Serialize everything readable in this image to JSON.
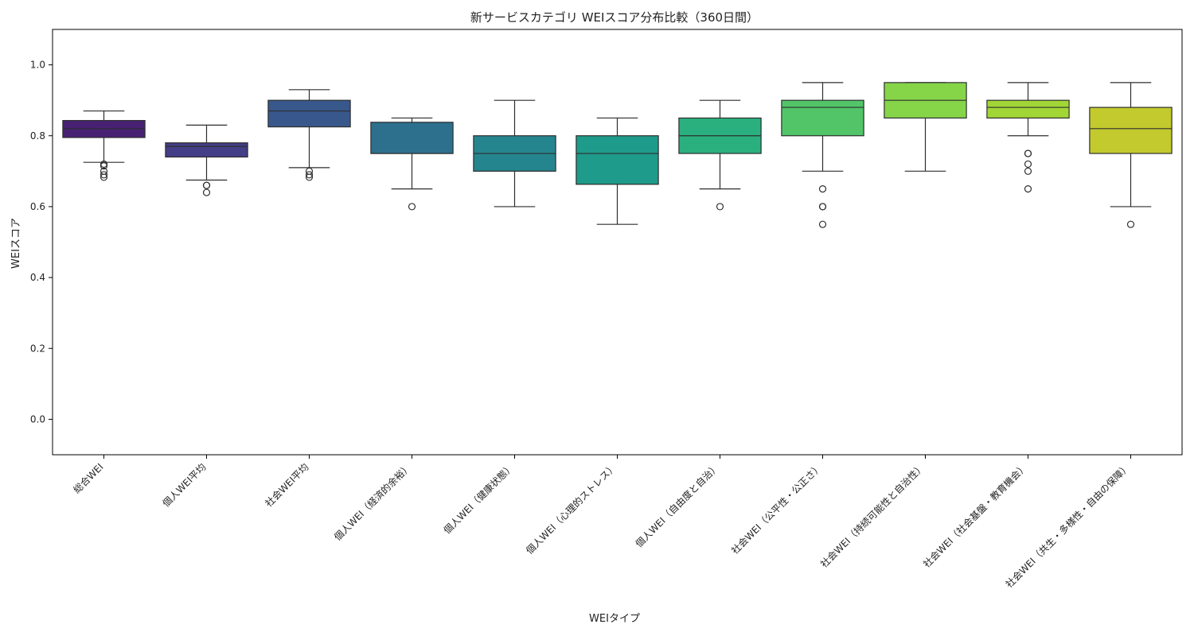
{
  "chart_data": {
    "type": "box",
    "title": "新サービスカテゴリ WEIスコア分布比較（360日間）",
    "xlabel": "WEIタイプ",
    "ylabel": "WEIスコア",
    "ylim": [
      -0.1,
      1.1
    ],
    "yticks": [
      "0.0",
      "0.2",
      "0.4",
      "0.6",
      "0.8",
      "1.0"
    ],
    "grid": false,
    "legend": "none",
    "categories": [
      {
        "name": "総合WEI",
        "whisker_low": 0.725,
        "q1": 0.795,
        "median": 0.82,
        "q3": 0.843,
        "whisker_high": 0.87,
        "outliers": [
          0.72,
          0.715,
          0.7,
          0.69,
          0.683
        ],
        "color": "#482173"
      },
      {
        "name": "個人WEI平均",
        "whisker_low": 0.675,
        "q1": 0.74,
        "median": 0.77,
        "q3": 0.78,
        "whisker_high": 0.83,
        "outliers": [
          0.66,
          0.66,
          0.64
        ],
        "color": "#433e85"
      },
      {
        "name": "社会WEI平均",
        "whisker_low": 0.71,
        "q1": 0.825,
        "median": 0.87,
        "q3": 0.9,
        "whisker_high": 0.93,
        "outliers": [
          0.7,
          0.69,
          0.683
        ],
        "color": "#38588c"
      },
      {
        "name": "個人WEI（経済的余裕）",
        "whisker_low": 0.65,
        "q1": 0.75,
        "median": 0.75,
        "q3": 0.838,
        "whisker_high": 0.85,
        "outliers": [
          0.6
        ],
        "color": "#2d708e"
      },
      {
        "name": "個人WEI（健康状態）",
        "whisker_low": 0.6,
        "q1": 0.7,
        "median": 0.75,
        "q3": 0.8,
        "whisker_high": 0.9,
        "outliers": [],
        "color": "#25858e"
      },
      {
        "name": "個人WEI（心理的ストレス）",
        "whisker_low": 0.55,
        "q1": 0.663,
        "median": 0.75,
        "q3": 0.8,
        "whisker_high": 0.85,
        "outliers": [],
        "color": "#1e9b8a"
      },
      {
        "name": "個人WEI（自由度と自治）",
        "whisker_low": 0.65,
        "q1": 0.75,
        "median": 0.8,
        "q3": 0.85,
        "whisker_high": 0.9,
        "outliers": [
          0.6
        ],
        "color": "#2ab07f"
      },
      {
        "name": "社会WEI（公平性・公正さ）",
        "whisker_low": 0.7,
        "q1": 0.8,
        "median": 0.88,
        "q3": 0.9,
        "whisker_high": 0.95,
        "outliers": [
          0.65,
          0.6,
          0.6,
          0.55
        ],
        "color": "#52c569"
      },
      {
        "name": "社会WEI（持続可能性と自治性）",
        "whisker_low": 0.7,
        "q1": 0.85,
        "median": 0.9,
        "q3": 0.95,
        "whisker_high": 0.95,
        "outliers": [],
        "color": "#86d549"
      },
      {
        "name": "社会WEI（社会基盤・教育機会）",
        "whisker_low": 0.8,
        "q1": 0.85,
        "median": 0.88,
        "q3": 0.9,
        "whisker_high": 0.95,
        "outliers": [
          0.75,
          0.75,
          0.72,
          0.7,
          0.65
        ],
        "color": "#a2d636"
      },
      {
        "name": "社会WEI（共生・多様性・自由の保障）",
        "whisker_low": 0.6,
        "q1": 0.75,
        "median": 0.82,
        "q3": 0.88,
        "whisker_high": 0.95,
        "outliers": [
          0.55
        ],
        "color": "#c2ca2e"
      }
    ]
  }
}
